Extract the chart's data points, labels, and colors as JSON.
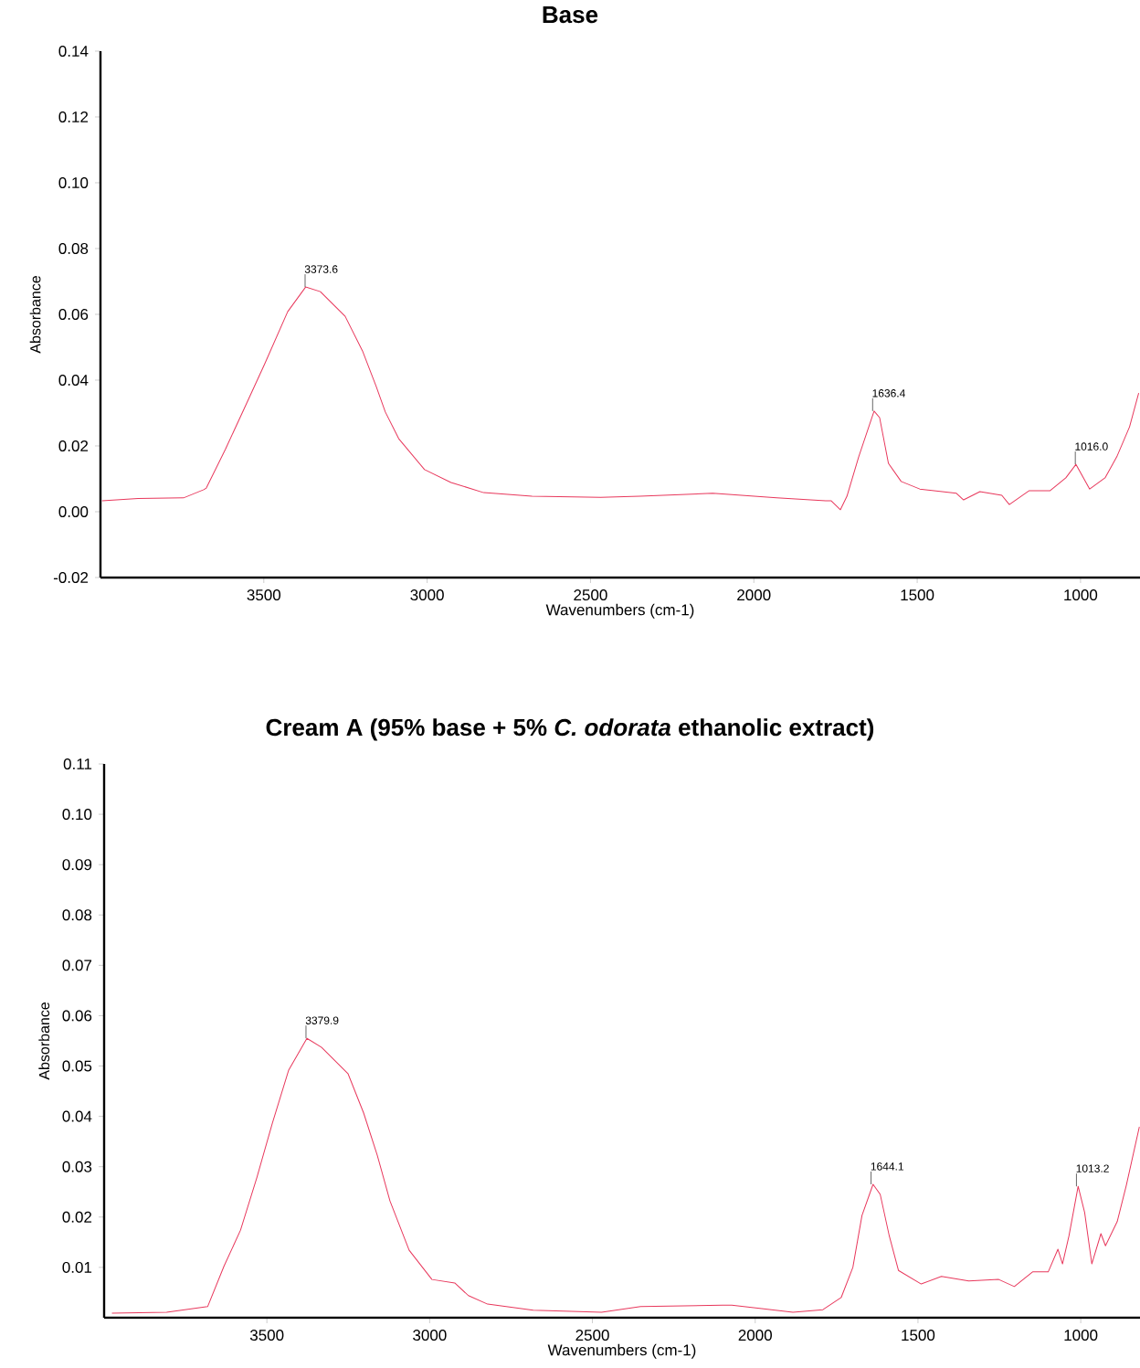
{
  "chart_data": [
    {
      "type": "line",
      "title": "**Base**",
      "xlabel": "Wavenumbers (cm-1)",
      "ylabel": "Absorbance",
      "xlim": [
        4000,
        818
      ],
      "ylim": [
        -0.02,
        0.14
      ],
      "xticks": [
        3500,
        3000,
        2500,
        2000,
        1500,
        1000
      ],
      "yticks": [
        {
          "value": -0.02,
          "label": "-0.02"
        },
        {
          "value": 0,
          "label": "0.00"
        },
        0.02,
        0.04,
        0.06,
        0.08,
        {
          "value": 0.1,
          "label": "0.10"
        },
        0.12,
        0.14
      ],
      "series": [
        {
          "color": "#e8385c",
          "x": [
            3995,
            3885,
            3746,
            3684,
            3676,
            3617,
            3556,
            3497,
            3427,
            3372,
            3327,
            3251,
            3198,
            3156,
            3128,
            3087,
            3008,
            2927,
            2827,
            2679,
            2469,
            2349,
            2126,
            1930,
            1780,
            1763,
            1735,
            1715,
            1679,
            1632,
            1615,
            1588,
            1549,
            1492,
            1380,
            1358,
            1308,
            1241,
            1218,
            1157,
            1093,
            1045,
            1014,
            972,
            925,
            889,
            850,
            822
          ],
          "values": [
            0.0033,
            0.004,
            0.0042,
            0.0067,
            0.0072,
            0.0191,
            0.0322,
            0.045,
            0.0608,
            0.0683,
            0.0669,
            0.0594,
            0.0489,
            0.0381,
            0.0303,
            0.0222,
            0.0128,
            0.0089,
            0.0058,
            0.0047,
            0.0044,
            0.0047,
            0.0056,
            0.0042,
            0.0033,
            0.0033,
            0.0006,
            0.0047,
            0.0167,
            0.0306,
            0.0286,
            0.0147,
            0.0092,
            0.0069,
            0.0056,
            0.0036,
            0.0061,
            0.005,
            0.0022,
            0.0064,
            0.0064,
            0.0103,
            0.0144,
            0.0069,
            0.0103,
            0.0167,
            0.0258,
            0.0361
          ]
        }
      ],
      "annotations": [
        {
          "text": "3373.6",
          "x": 3373.6,
          "y": 0.0683
        },
        {
          "text": "1636.4",
          "x": 1636.4,
          "y": 0.0306
        },
        {
          "text": "1016.0",
          "x": 1016.0,
          "y": 0.0144
        }
      ]
    },
    {
      "type": "line",
      "title": "**Cream A (95% base + 5% *C. odorata* ethanolic extract)**",
      "xlabel": "Wavenumbers (cm-1)",
      "ylabel": "Absorbance",
      "xlim": [
        4000,
        818
      ],
      "ylim": [
        0,
        0.11
      ],
      "xticks": [
        3500,
        3000,
        2500,
        2000,
        1500,
        1000
      ],
      "yticks": [
        0.01,
        0.02,
        0.03,
        0.04,
        0.05,
        0.06,
        0.07,
        0.08,
        0.09,
        {
          "value": 0.1,
          "label": "0.10"
        },
        0.11
      ],
      "series": [
        {
          "color": "#e8385c",
          "x": [
            3976,
            3808,
            3682,
            3632,
            3581,
            3531,
            3483,
            3433,
            3377,
            3332,
            3251,
            3203,
            3161,
            3122,
            3063,
            2993,
            2923,
            2881,
            2822,
            2682,
            2472,
            2352,
            2100,
            2072,
            1980,
            1884,
            1792,
            1736,
            1700,
            1672,
            1638,
            1616,
            1588,
            1560,
            1490,
            1428,
            1344,
            1252,
            1204,
            1148,
            1100,
            1070,
            1056,
            1036,
            1008,
            988,
            966,
            938,
            924,
            888,
            860,
            820
          ],
          "values": [
            0.0009,
            0.0011,
            0.0022,
            0.0102,
            0.0174,
            0.0278,
            0.0387,
            0.0492,
            0.0555,
            0.0537,
            0.0485,
            0.0407,
            0.0323,
            0.0232,
            0.0134,
            0.0076,
            0.0069,
            0.0044,
            0.0027,
            0.0015,
            0.0011,
            0.0022,
            0.0025,
            0.0025,
            0.0018,
            0.0011,
            0.0016,
            0.004,
            0.01,
            0.0203,
            0.0265,
            0.0245,
            0.0162,
            0.0094,
            0.0067,
            0.0082,
            0.0073,
            0.0076,
            0.0062,
            0.0091,
            0.0091,
            0.0136,
            0.0107,
            0.0163,
            0.0261,
            0.0209,
            0.0107,
            0.0167,
            0.0143,
            0.0191,
            0.0263,
            0.0379
          ]
        }
      ],
      "annotations": [
        {
          "text": "3379.9",
          "x": 3379.9,
          "y": 0.0555
        },
        {
          "text": "1644.1",
          "x": 1644.1,
          "y": 0.0265
        },
        {
          "text": "1013.2",
          "x": 1013.2,
          "y": 0.0261
        }
      ]
    }
  ]
}
